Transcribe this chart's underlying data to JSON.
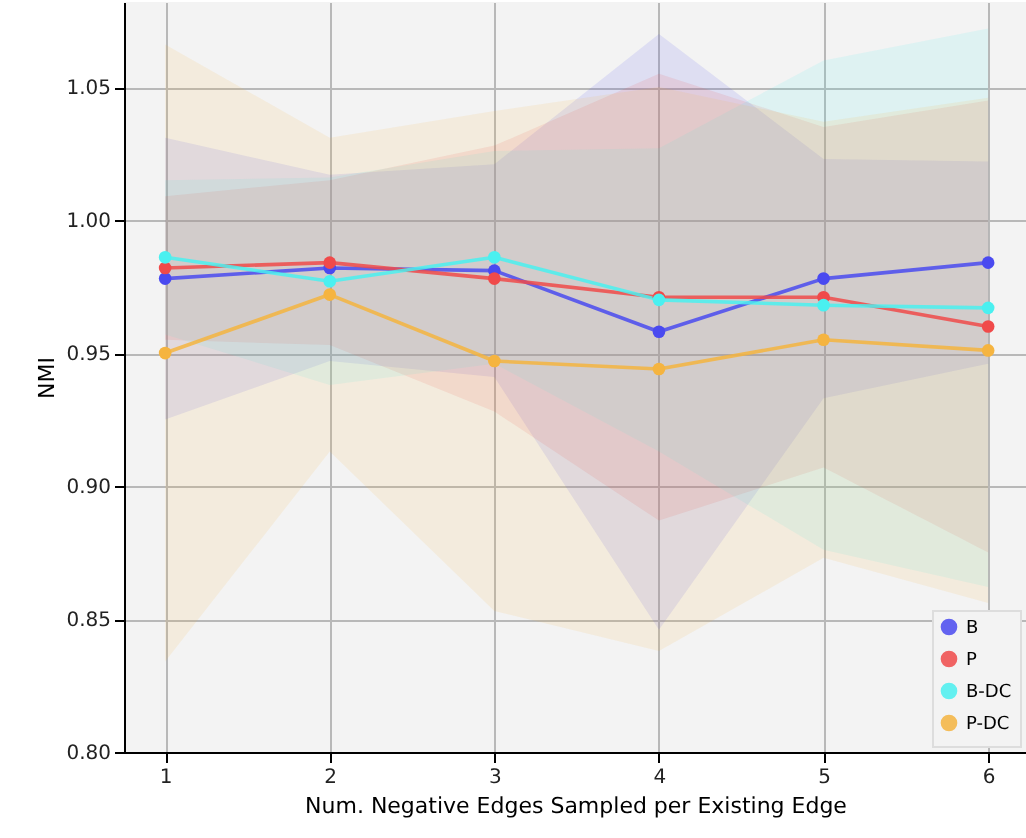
{
  "chart_data": {
    "type": "line",
    "xlabel": "Num. Negative Edges Sampled per Existing Edge",
    "ylabel": "NMI",
    "x": [
      1,
      2,
      3,
      4,
      5,
      6
    ],
    "xlim": [
      0.75,
      6.23
    ],
    "ylim": [
      0.8,
      1.082
    ],
    "xticks": [
      1,
      2,
      3,
      4,
      5,
      6
    ],
    "yticks": [
      {
        "value": 0.8,
        "label": "0.80"
      },
      0.85,
      {
        "value": 0.9,
        "label": "0.90"
      },
      0.95,
      {
        "value": 1.0,
        "label": "1.00"
      },
      1.05
    ],
    "grid": true,
    "legend": "bottom right",
    "marker": "circle",
    "series": [
      {
        "name": "B",
        "color": "#4a4af0",
        "values": [
          0.978,
          0.982,
          0.981,
          0.958,
          0.978,
          0.984
        ],
        "lower": [
          0.925,
          0.947,
          0.941,
          0.846,
          0.933,
          0.946
        ],
        "upper": [
          1.031,
          1.017,
          1.021,
          1.07,
          1.023,
          1.022
        ]
      },
      {
        "name": "P",
        "color": "#f04a4a",
        "values": [
          0.982,
          0.984,
          0.978,
          0.971,
          0.971,
          0.96
        ],
        "lower": [
          0.955,
          0.953,
          0.928,
          0.887,
          0.907,
          0.875
        ],
        "upper": [
          1.009,
          1.015,
          1.028,
          1.055,
          1.035,
          1.045
        ]
      },
      {
        "name": "B-DC",
        "color": "#4af0f0",
        "values": [
          0.986,
          0.977,
          0.986,
          0.97,
          0.968,
          0.967
        ],
        "lower": [
          0.957,
          0.938,
          0.946,
          0.913,
          0.876,
          0.862
        ],
        "upper": [
          1.015,
          1.016,
          1.026,
          1.027,
          1.06,
          1.072
        ]
      },
      {
        "name": "P-DC",
        "color": "#f5b440",
        "values": [
          0.95,
          0.972,
          0.947,
          0.944,
          0.955,
          0.951
        ],
        "lower": [
          0.834,
          0.913,
          0.853,
          0.838,
          0.873,
          0.856
        ],
        "upper": [
          1.066,
          1.031,
          1.041,
          1.05,
          1.037,
          1.046
        ]
      }
    ]
  }
}
